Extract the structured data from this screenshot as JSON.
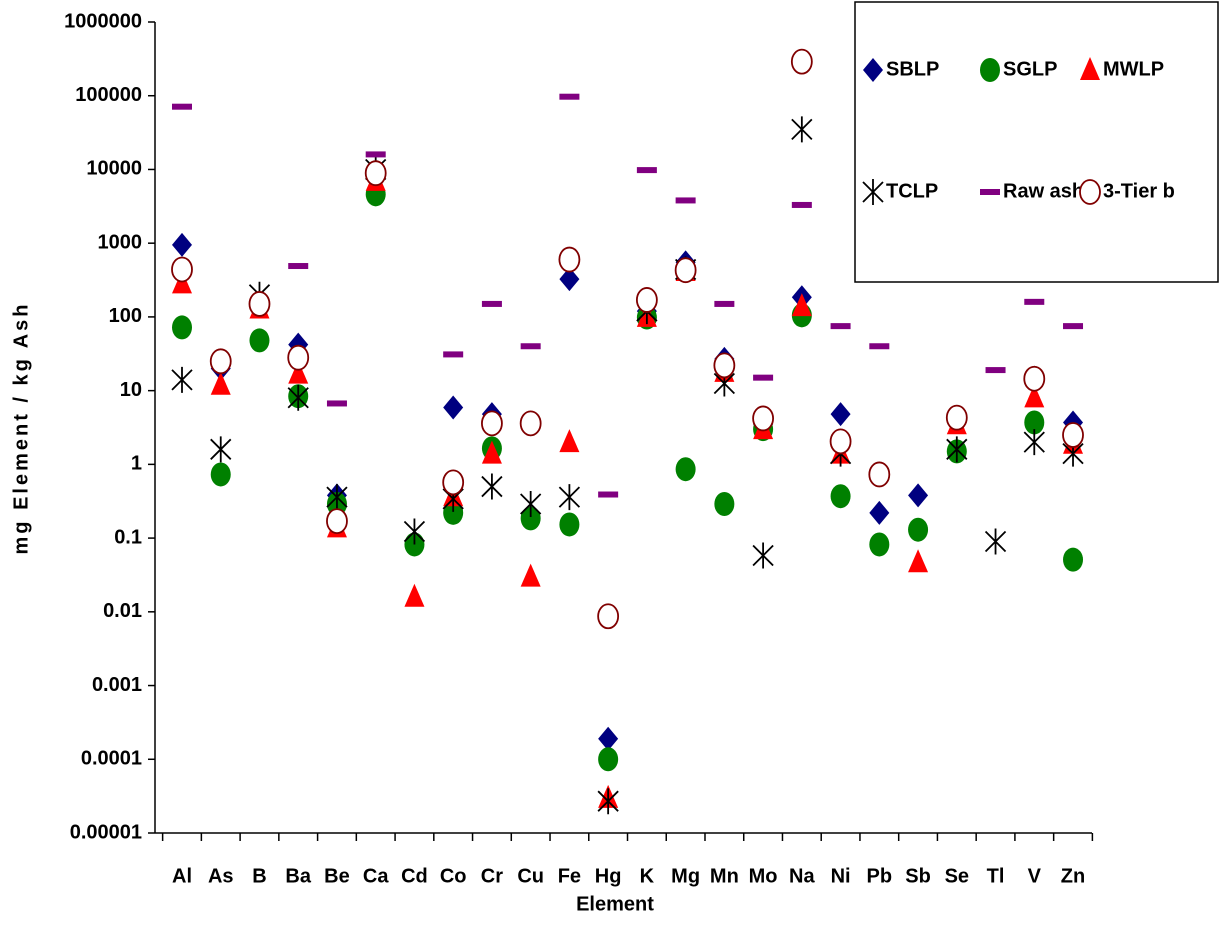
{
  "chart_data": {
    "type": "scatter",
    "x_label": "Element",
    "y_label": "mg Element / kg Ash",
    "log_y": true,
    "legend": "upper right",
    "categories": [
      "Al",
      "As",
      "B",
      "Ba",
      "Be",
      "Ca",
      "Cd",
      "Co",
      "Cr",
      "Cu",
      "Fe",
      "Hg",
      "K",
      "Mg",
      "Mn",
      "Mo",
      "Na",
      "Ni",
      "Pb",
      "Sb",
      "Se",
      "Tl",
      "V",
      "Zn"
    ],
    "ylim": [
      1e-05,
      1000000
    ],
    "yticks": [
      1e-05,
      0.0001,
      0.001,
      0.01,
      0.1,
      1,
      10,
      100,
      1000,
      10000,
      100000,
      1000000
    ],
    "series": [
      {
        "name": "SBLP",
        "color": "#000080",
        "marker": "diamond",
        "values": [
          950,
          20,
          150,
          42,
          0.38,
          8000,
          null,
          5.9,
          4.8,
          3.5,
          325,
          0.00019,
          120,
          550,
          27,
          3.5,
          185,
          4.8,
          0.22,
          0.38,
          4,
          null,
          15,
          3.7
        ]
      },
      {
        "name": "SGLP",
        "color": "#008000",
        "marker": "circle",
        "values": [
          72,
          0.73,
          48,
          8.4,
          0.29,
          4600,
          0.082,
          0.22,
          1.65,
          0.185,
          0.153,
          0.0001,
          98,
          0.86,
          0.29,
          3,
          105,
          0.37,
          0.082,
          0.13,
          1.5,
          null,
          3.7,
          0.051
        ]
      },
      {
        "name": "MWLP",
        "color": "#ff0000",
        "marker": "triangle",
        "values": [
          285,
          12,
          130,
          17,
          0.14,
          7000,
          0.016,
          0.37,
          1.4,
          0.03,
          2,
          3e-05,
          100,
          420,
          18,
          3,
          140,
          1.4,
          null,
          0.047,
          3.5,
          null,
          8.1,
          1.9
        ]
      },
      {
        "name": "TCLP",
        "color": "#000000",
        "marker": "star",
        "values": [
          14,
          1.6,
          200,
          8,
          0.36,
          10000,
          0.123,
          0.34,
          0.5,
          0.29,
          0.36,
          2.7e-05,
          120,
          440,
          12.5,
          0.058,
          35000,
          1.4,
          null,
          null,
          1.6,
          0.09,
          2,
          1.4
        ]
      },
      {
        "name": "Raw ash",
        "color": "#800080",
        "marker": "dash",
        "values": [
          71000,
          null,
          null,
          490,
          6.7,
          16000,
          null,
          31,
          150,
          40,
          97000,
          0.39,
          9800,
          3800,
          150,
          15,
          3300,
          75,
          40,
          null,
          null,
          19,
          160,
          75
        ]
      },
      {
        "name": "3-Tier b",
        "color": "#800000",
        "marker": "open-circle",
        "values": [
          440,
          25,
          150,
          28,
          0.17,
          8900,
          null,
          0.57,
          3.6,
          3.6,
          600,
          0.0087,
          170,
          430,
          22,
          4.2,
          290000,
          2.05,
          0.73,
          null,
          4.3,
          null,
          14.5,
          2.5
        ]
      }
    ]
  }
}
